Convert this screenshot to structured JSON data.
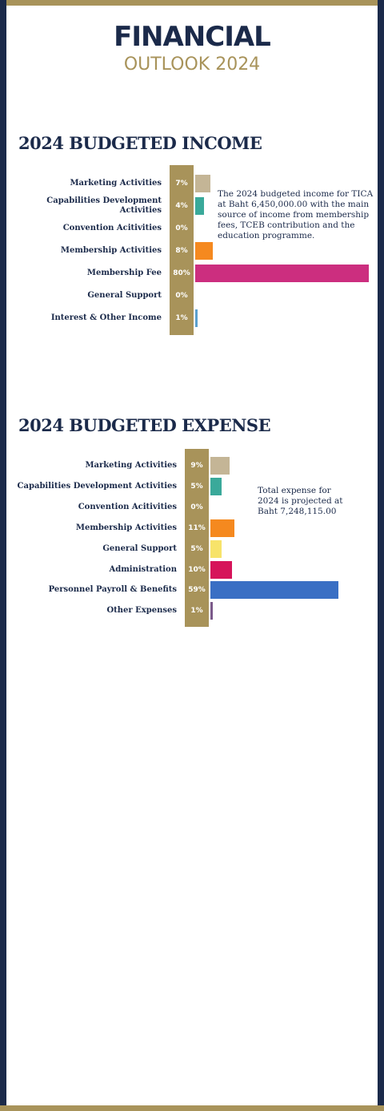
{
  "header": {
    "title": "FINANCIAL",
    "subtitle": "OUTLOOK 2024"
  },
  "chart_data": [
    {
      "type": "bar",
      "orientation": "horizontal",
      "title": "2024 BUDGETED INCOME",
      "categories": [
        "Marketing Activities",
        "Capabilities Development Activities",
        "Convention Acitivities",
        "Membership Activities",
        "Membership Fee",
        "General Support",
        "Interest & Other Income"
      ],
      "values": [
        7,
        4,
        0,
        8,
        80,
        0,
        1
      ],
      "value_labels": [
        "7%",
        "4%",
        "0%",
        "8%",
        "80%",
        "0%",
        "1%"
      ],
      "colors": [
        "#c4b596",
        "#3aa99a",
        "#c4b596",
        "#f5891f",
        "#cc2e7f",
        "#c4b596",
        "#5aa0cf"
      ],
      "annotation": "The 2024 budgeted income for TICA at Baht 6,450,000.00 with the main source of income from membership fees, TCEB contribution and the education programme."
    },
    {
      "type": "bar",
      "orientation": "horizontal",
      "title": "2024 BUDGETED EXPENSE",
      "categories": [
        "Marketing Activities",
        "Capabilities Development Activities",
        "Convention Acitivities",
        "Membership Activities",
        "General Support",
        "Administration",
        "Personnel Payroll & Benefits",
        "Other Expenses"
      ],
      "values": [
        9,
        5,
        0,
        11,
        5,
        10,
        59,
        1
      ],
      "value_labels": [
        "9%",
        "5%",
        "0%",
        "11%",
        "5%",
        "10%",
        "59%",
        "1%"
      ],
      "colors": [
        "#c4b596",
        "#3aa99a",
        "#c4b596",
        "#f5891f",
        "#f7e36a",
        "#d6145a",
        "#3a6fc4",
        "#7b5a8a"
      ],
      "annotation": "Total expense for 2024 is projected at Baht 7,248,115.00"
    }
  ]
}
